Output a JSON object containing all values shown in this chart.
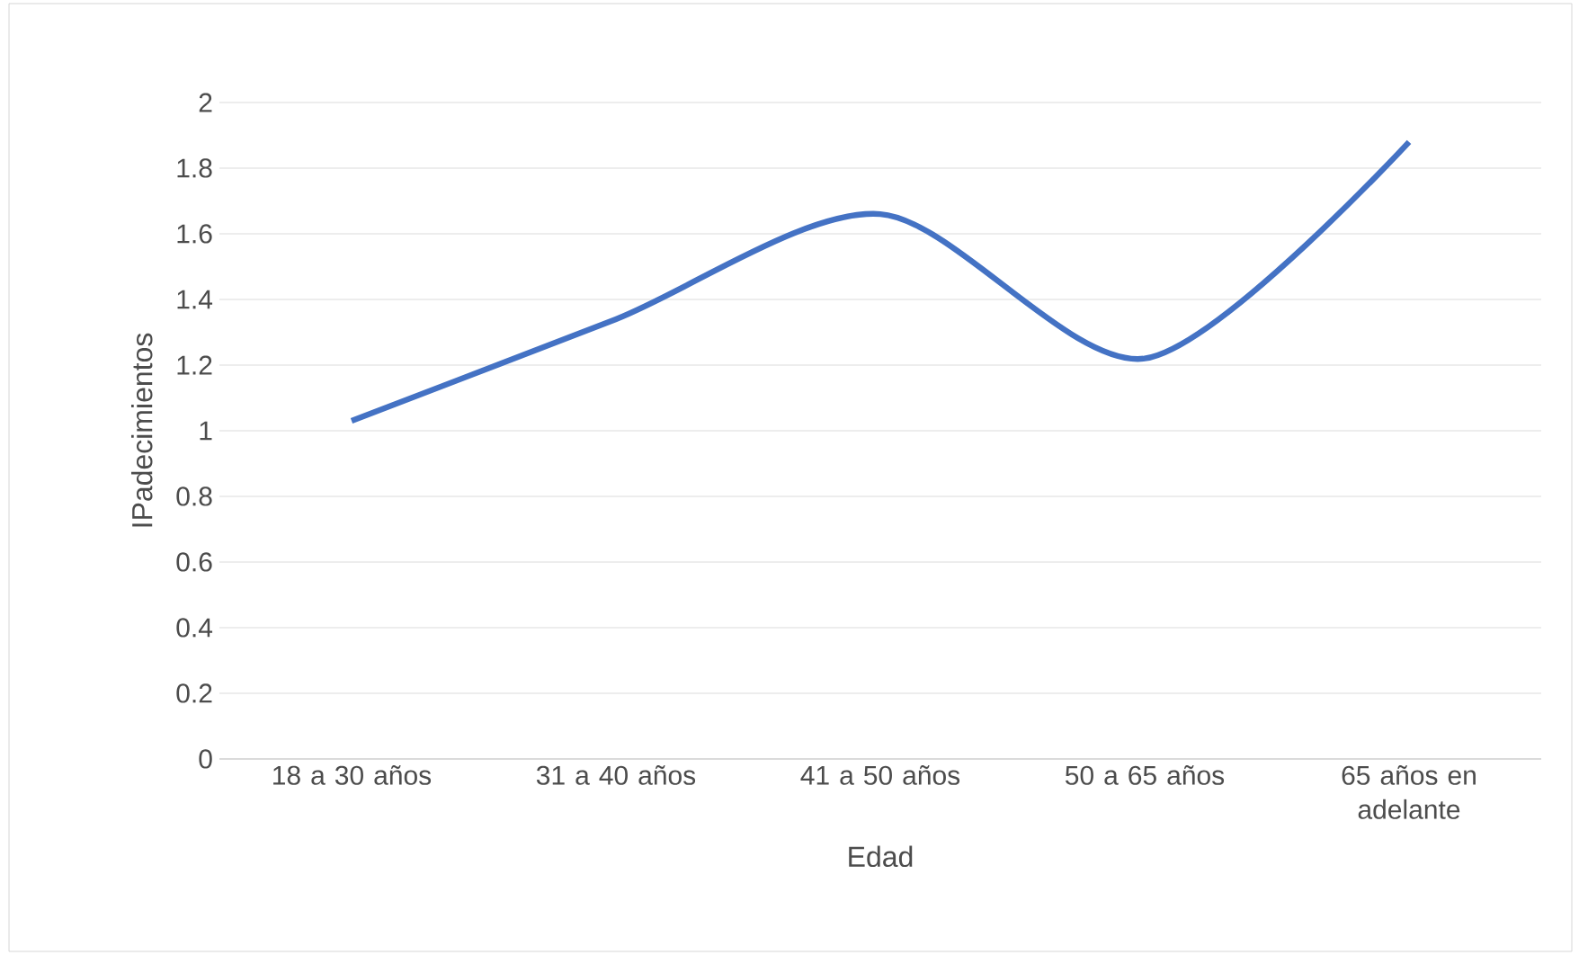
{
  "chart_data": {
    "type": "line",
    "xlabel": "Edad",
    "ylabel": "IPadecimientos",
    "categories": [
      "18 a 30 años",
      "31 a 40 años",
      "41 a 50 años",
      "50 a 65 años",
      "65 años en adelante"
    ],
    "values": [
      1.03,
      1.34,
      1.66,
      1.22,
      1.88
    ],
    "color": "#4472c4",
    "ylim": [
      0,
      2
    ],
    "yticks": [
      0,
      0.2,
      0.4,
      0.6,
      0.8,
      1,
      1.2,
      1.4,
      1.6,
      1.8,
      2
    ],
    "grid": "y",
    "marker": "none",
    "line_style": "solid"
  }
}
